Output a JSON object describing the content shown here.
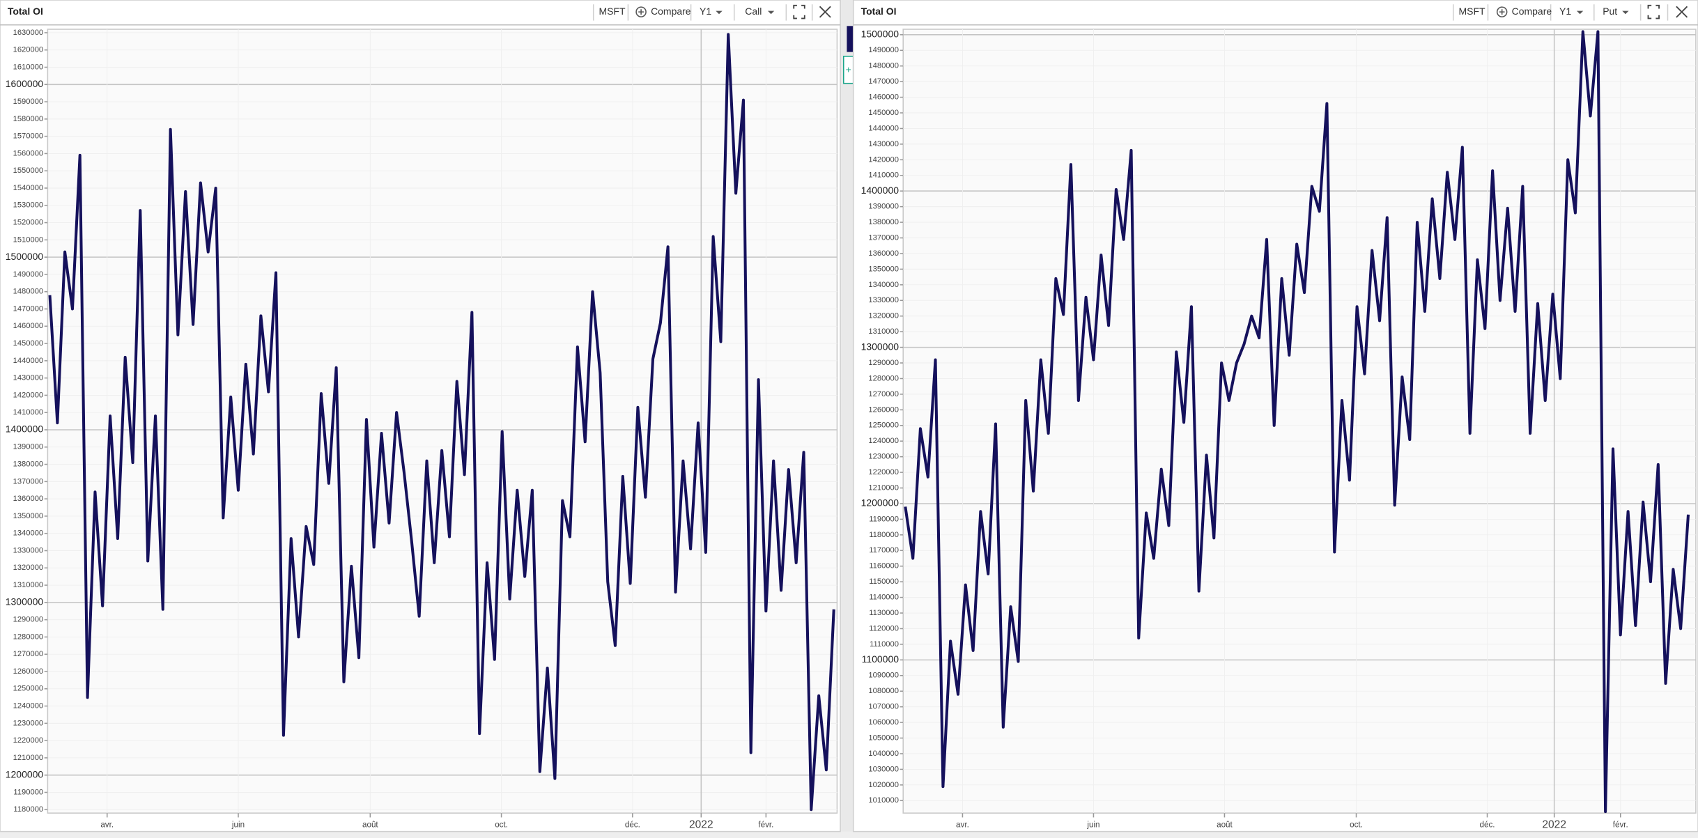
{
  "chart_data": [
    {
      "type": "line",
      "title": "Total OI",
      "toolbar": [
        "MSFT",
        "Compare",
        "Y1",
        "Call"
      ],
      "color": "#15115c",
      "grid": true,
      "values": [
        1478000,
        1404000,
        1503000,
        1470000,
        1559000,
        1245000,
        1364000,
        1298000,
        1408000,
        1337000,
        1442000,
        1381000,
        1527000,
        1324000,
        1408000,
        1296000,
        1574000,
        1455000,
        1538000,
        1461000,
        1543000,
        1503000,
        1540000,
        1349000,
        1419000,
        1365000,
        1438000,
        1386000,
        1466000,
        1422000,
        1491000,
        1223000,
        1337000,
        1280000,
        1344000,
        1322000,
        1421000,
        1369000,
        1436000,
        1254000,
        1321000,
        1268000,
        1406000,
        1332000,
        1398000,
        1346000,
        1410000,
        1375000,
        1335000,
        1292000,
        1382000,
        1323000,
        1388000,
        1338000,
        1428000,
        1374000,
        1468000,
        1224000,
        1323000,
        1267000,
        1399000,
        1302000,
        1365000,
        1315000,
        1365000,
        1202000,
        1262000,
        1198000,
        1359000,
        1338000,
        1448000,
        1393000,
        1480000,
        1433000,
        1312000,
        1275000,
        1373000,
        1311000,
        1413000,
        1361000,
        1441000,
        1462000,
        1506000,
        1306000,
        1382000,
        1331000,
        1404000,
        1329000,
        1512000,
        1451000,
        1629000,
        1537000,
        1591000,
        1213000,
        1429000,
        1295000,
        1382000,
        1307000,
        1377000,
        1323000,
        1387000,
        1180000,
        1246000,
        1203000,
        1296000
      ],
      "xlim": [
        0,
        104
      ],
      "xticks": [
        {
          "value": 7.6,
          "label": "avr."
        },
        {
          "value": 25,
          "label": "juin"
        },
        {
          "value": 42.5,
          "label": "août"
        },
        {
          "value": 59.9,
          "label": "oct."
        },
        {
          "value": 77.3,
          "label": "déc."
        },
        {
          "value": 86.4,
          "label": "2022"
        },
        {
          "value": 95,
          "label": "févr."
        }
      ],
      "ylim": [
        1178000,
        1632000
      ],
      "yticks": [
        1180000,
        1190000,
        1200000,
        1210000,
        1220000,
        1230000,
        1240000,
        1250000,
        1260000,
        1270000,
        1280000,
        1290000,
        1300000,
        1310000,
        1320000,
        1330000,
        1340000,
        1350000,
        1360000,
        1370000,
        1380000,
        1390000,
        1400000,
        1410000,
        1420000,
        1430000,
        1440000,
        1450000,
        1460000,
        1470000,
        1480000,
        1490000,
        1500000,
        1510000,
        1520000,
        1530000,
        1540000,
        1550000,
        1560000,
        1570000,
        1580000,
        1590000,
        1600000,
        1610000,
        1620000,
        1630000
      ]
    },
    {
      "type": "line",
      "title": "Total OI",
      "toolbar": [
        "MSFT",
        "Compare",
        "Y1",
        "Put"
      ],
      "color": "#15115c",
      "grid": true,
      "values": [
        1198000,
        1165000,
        1248000,
        1217000,
        1292000,
        1019000,
        1112000,
        1078000,
        1148000,
        1106000,
        1195000,
        1155000,
        1251000,
        1057000,
        1134000,
        1099000,
        1266000,
        1208000,
        1292000,
        1245000,
        1344000,
        1321000,
        1417000,
        1266000,
        1332000,
        1292000,
        1359000,
        1314000,
        1401000,
        1369000,
        1426000,
        1114000,
        1194000,
        1165000,
        1222000,
        1186000,
        1297000,
        1252000,
        1326000,
        1144000,
        1231000,
        1178000,
        1290000,
        1266000,
        1290000,
        1302000,
        1320000,
        1306000,
        1369000,
        1250000,
        1344000,
        1295000,
        1366000,
        1335000,
        1403000,
        1387000,
        1456000,
        1169000,
        1266000,
        1215000,
        1326000,
        1283000,
        1362000,
        1317000,
        1383000,
        1199000,
        1281000,
        1241000,
        1380000,
        1323000,
        1395000,
        1344000,
        1412000,
        1369000,
        1428000,
        1245000,
        1356000,
        1312000,
        1413000,
        1330000,
        1389000,
        1323000,
        1403000,
        1245000,
        1328000,
        1266000,
        1334000,
        1280000,
        1420000,
        1386000,
        1502000,
        1448000,
        1502000,
        1003000,
        1235000,
        1116000,
        1195000,
        1122000,
        1201000,
        1150000,
        1225000,
        1085000,
        1158000,
        1120000,
        1193000
      ],
      "xlim": [
        0,
        104
      ],
      "xticks": [
        {
          "value": 7.6,
          "label": "avr."
        },
        {
          "value": 25,
          "label": "juin"
        },
        {
          "value": 42.4,
          "label": "août"
        },
        {
          "value": 59.9,
          "label": "oct."
        },
        {
          "value": 77.3,
          "label": "déc."
        },
        {
          "value": 86.2,
          "label": "2022"
        },
        {
          "value": 95,
          "label": "févr."
        }
      ],
      "ylim": [
        1002000,
        1503500
      ],
      "yticks": [
        1010000,
        1020000,
        1030000,
        1040000,
        1050000,
        1060000,
        1070000,
        1080000,
        1090000,
        1100000,
        1110000,
        1120000,
        1130000,
        1140000,
        1150000,
        1160000,
        1170000,
        1180000,
        1190000,
        1200000,
        1210000,
        1220000,
        1230000,
        1240000,
        1250000,
        1260000,
        1270000,
        1280000,
        1290000,
        1300000,
        1310000,
        1320000,
        1330000,
        1340000,
        1350000,
        1360000,
        1370000,
        1380000,
        1390000,
        1400000,
        1410000,
        1420000,
        1430000,
        1440000,
        1450000,
        1460000,
        1470000,
        1480000,
        1490000,
        1500000
      ]
    }
  ]
}
